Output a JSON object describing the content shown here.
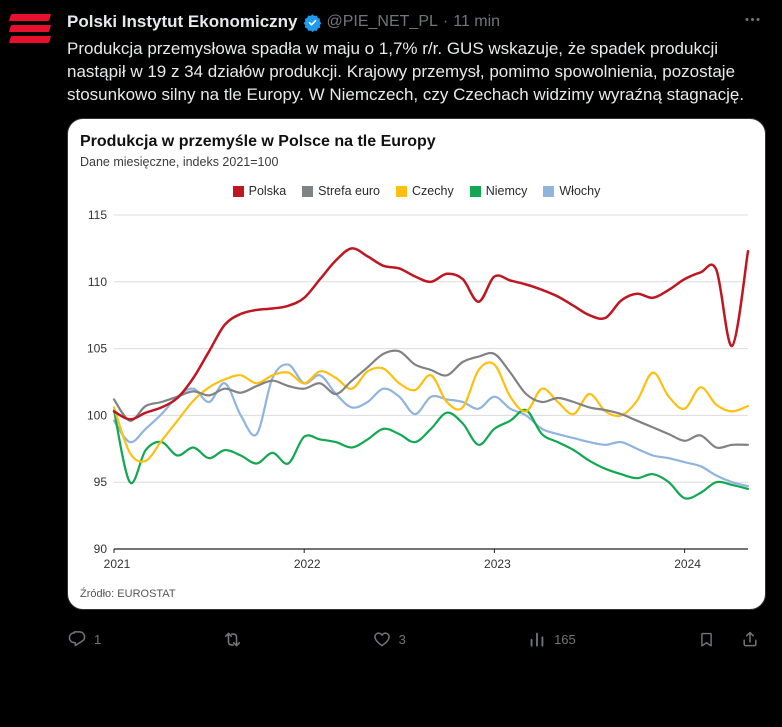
{
  "theme": {
    "bg": "#000000",
    "text": "#e7e9ea",
    "secondary": "#71767b",
    "accent_blue": "#1d9bf0",
    "brand_red": "#e8112d",
    "card_border": "#2f3336"
  },
  "header": {
    "display_name": "Polski Instytut Ekonomiczny",
    "handle": "@PIE_NET_PL",
    "separator": "·",
    "timestamp": "11 min"
  },
  "tweet": {
    "text": "Produkcja przemysłowa spadła w maju o 1,7% r/r. GUS wskazuje, że spadek produkcji nastąpił w 19 z 34 działów produkcji. Krajowy przemysł, pomimo spowolnienia, pozostaje stosunkowo silny na tle Europy. W Niemczech, czy Czechach widzimy wyraźną stagnację."
  },
  "chart_data": {
    "type": "line",
    "title": "Produkcja w przemyśle w Polsce na tle Europy",
    "subtitle": "Dane miesięczne, indeks 2021=100",
    "source": "Źródło: EUROSTAT",
    "background": "#ffffff",
    "grid": true,
    "legend_position": "top",
    "ylim": [
      90,
      115
    ],
    "yticks": [
      90,
      95,
      100,
      105,
      110,
      115
    ],
    "x_tick_labels": [
      "2021",
      "2022",
      "2023",
      "2024"
    ],
    "x_tick_indices": [
      0,
      12,
      24,
      36
    ],
    "series": [
      {
        "name": "Polska",
        "color": "#bf1722",
        "values": [
          100.3,
          99.7,
          100.2,
          100.6,
          101.3,
          102.8,
          104.8,
          106.8,
          107.6,
          107.9,
          108.0,
          108.2,
          108.8,
          110.2,
          111.6,
          112.5,
          111.9,
          111.2,
          111.0,
          110.4,
          110.0,
          110.6,
          110.2,
          108.5,
          110.4,
          110.1,
          109.8,
          109.4,
          108.9,
          108.2,
          107.5,
          107.3,
          108.6,
          109.1,
          108.8,
          109.4,
          110.2,
          110.7,
          110.9,
          105.2,
          112.3
        ]
      },
      {
        "name": "Strefa euro",
        "color": "#808285",
        "values": [
          101.2,
          99.6,
          100.7,
          101.0,
          101.4,
          101.8,
          101.5,
          102.0,
          101.7,
          102.2,
          102.6,
          102.2,
          102.0,
          102.4,
          101.6,
          102.6,
          103.6,
          104.6,
          104.8,
          103.8,
          103.4,
          103.0,
          104.0,
          104.4,
          104.6,
          103.2,
          101.6,
          101.0,
          101.3,
          101.0,
          100.6,
          100.4,
          100.1,
          99.6,
          99.1,
          98.6,
          98.1,
          98.5,
          97.6,
          97.8,
          97.8
        ]
      },
      {
        "name": "Czechy",
        "color": "#fdc010",
        "values": [
          100.6,
          97.2,
          96.6,
          98.1,
          99.6,
          101.1,
          102.1,
          102.7,
          103.0,
          102.4,
          103.0,
          103.2,
          102.4,
          103.3,
          102.8,
          102.0,
          103.3,
          103.5,
          102.4,
          101.9,
          103.0,
          101.0,
          100.6,
          103.4,
          103.8,
          101.4,
          100.3,
          102.0,
          101.0,
          100.1,
          101.6,
          100.3,
          100.0,
          101.1,
          103.2,
          101.4,
          100.5,
          102.1,
          100.8,
          100.3,
          100.7
        ]
      },
      {
        "name": "Niemcy",
        "color": "#12a852",
        "values": [
          100.4,
          95.0,
          97.4,
          98.0,
          97.0,
          97.6,
          96.8,
          97.4,
          97.0,
          96.4,
          97.2,
          96.4,
          98.4,
          98.2,
          98.0,
          97.6,
          98.2,
          99.0,
          98.6,
          98.0,
          99.0,
          100.2,
          99.4,
          97.8,
          99.0,
          99.6,
          100.4,
          98.6,
          98.0,
          97.4,
          96.6,
          96.0,
          95.6,
          95.3,
          95.6,
          95.0,
          93.8,
          94.2,
          95.0,
          94.8,
          94.5
        ]
      },
      {
        "name": "Włochy",
        "color": "#8fb4dd",
        "values": [
          99.6,
          98.0,
          99.0,
          100.1,
          101.4,
          102.0,
          101.0,
          102.4,
          100.0,
          98.6,
          102.8,
          103.8,
          102.4,
          103.0,
          101.6,
          100.6,
          101.0,
          102.0,
          101.4,
          100.1,
          101.4,
          101.2,
          101.0,
          100.5,
          101.4,
          100.5,
          100.0,
          99.0,
          98.6,
          98.3,
          98.0,
          97.8,
          98.0,
          97.5,
          97.0,
          96.8,
          96.5,
          96.2,
          95.5,
          95.0,
          94.7
        ]
      }
    ]
  },
  "actions": {
    "reply": {
      "count": "1"
    },
    "repost": {
      "count": ""
    },
    "like": {
      "count": "3"
    },
    "views": {
      "count": "165"
    }
  }
}
